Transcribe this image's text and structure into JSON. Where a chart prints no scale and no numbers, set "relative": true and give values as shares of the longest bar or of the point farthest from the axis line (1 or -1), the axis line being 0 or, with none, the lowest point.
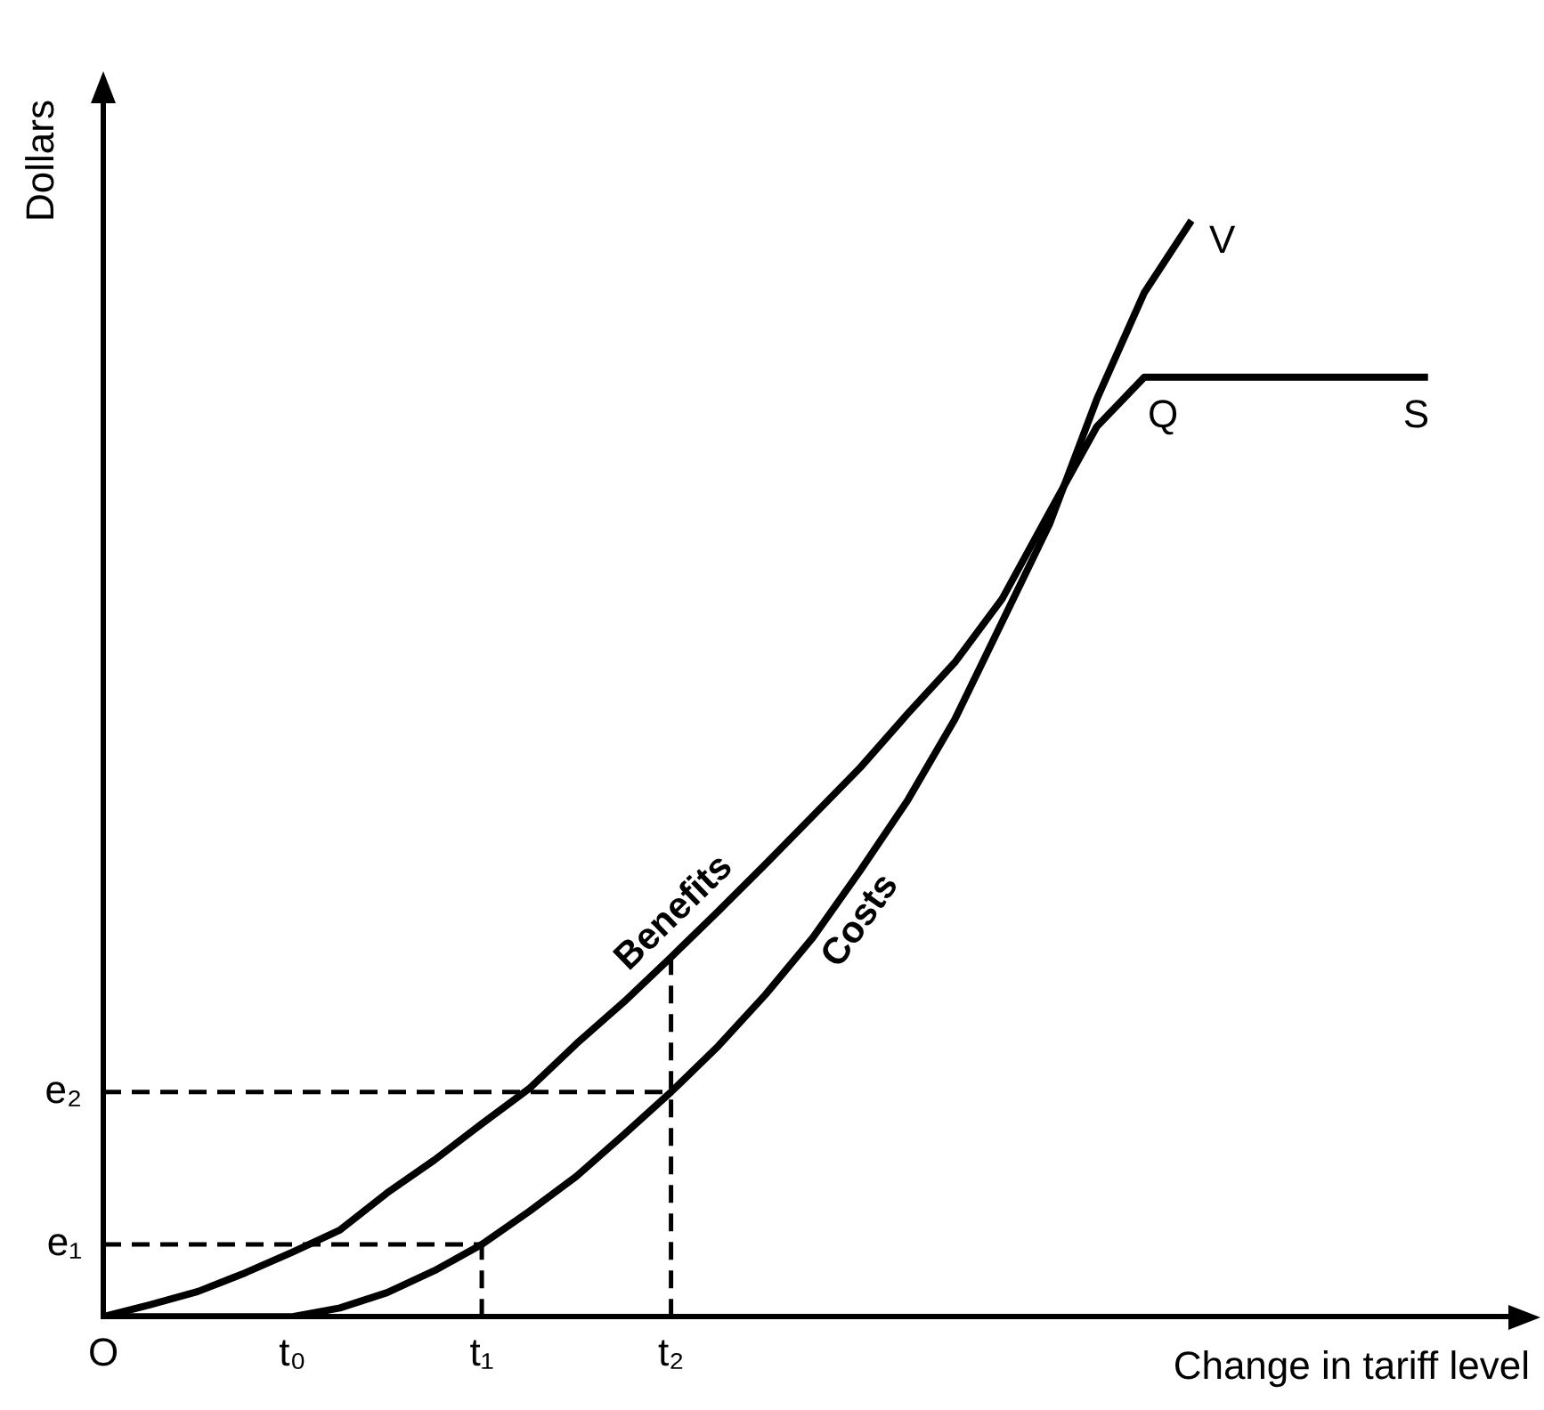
{
  "chart_data": {
    "type": "line",
    "xlabel": "Change in tariff level",
    "ylabel": "Dollars",
    "relative": true,
    "categories": [
      "O",
      null,
      null,
      null,
      "t₀",
      null,
      null,
      null,
      "t₁",
      null,
      null,
      null,
      "t₂",
      null,
      null,
      null,
      null,
      null,
      null,
      null,
      null,
      null,
      null,
      null,
      null,
      null,
      null,
      null,
      null,
      null,
      null
    ],
    "grid": false,
    "legend": false,
    "marker": "none",
    "series": [
      {
        "name": "Benefits",
        "color": "#000000",
        "values": [
          0,
          0.011,
          0.023,
          0.04,
          0.059,
          0.079,
          0.113,
          0.143,
          0.176,
          0.208,
          0.249,
          0.287,
          0.328,
          0.37,
          0.413,
          0.457,
          0.501,
          0.55,
          0.597,
          0.655,
          0.734,
          0.812,
          0.857,
          0.857,
          0.857,
          0.857,
          0.857,
          0.857,
          0.857,
          null,
          null
        ]
      },
      {
        "name": "Costs",
        "color": "#000000",
        "values": [
          0,
          0,
          0,
          0,
          0,
          0.008,
          0.022,
          0.042,
          0.066,
          0.096,
          0.128,
          0.166,
          0.205,
          0.247,
          0.294,
          0.346,
          0.407,
          0.471,
          0.545,
          0.634,
          0.723,
          0.837,
          0.934,
          1,
          null,
          null,
          null,
          null,
          null,
          null,
          null
        ]
      },
      {
        "color": "#000000",
        "line_style": "dashed",
        "x": [
          "O",
          "t₂"
        ],
        "values": [
          0.205,
          0.205
        ]
      },
      {
        "color": "#000000",
        "line_style": "dashed",
        "x": [
          "t₂",
          "t₂"
        ],
        "values": [
          0,
          0.328
        ]
      },
      {
        "color": "#000000",
        "line_style": "dashed",
        "x": [
          "O",
          "t₁"
        ],
        "values": [
          0.066,
          0.066
        ]
      },
      {
        "color": "#000000",
        "line_style": "dashed",
        "x": [
          "t₁",
          "t₁"
        ],
        "values": [
          0,
          0.066
        ]
      }
    ],
    "annotations": [
      "e₁",
      "e₂",
      "V",
      "Q",
      "S"
    ]
  }
}
